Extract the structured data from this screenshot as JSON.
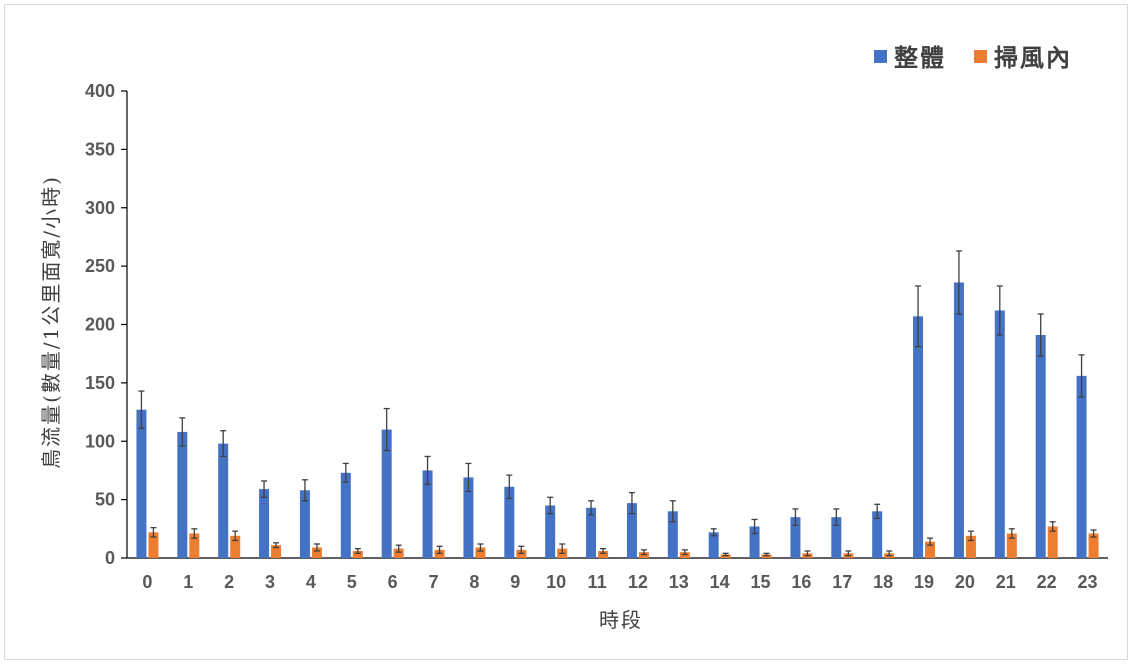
{
  "chart_data": {
    "type": "bar",
    "xlabel": "時段",
    "ylabel": "鳥流量(數量/1公里面寬/小時)",
    "ylim": [
      0,
      400
    ],
    "yticks": [
      "0",
      "50",
      "100",
      "150",
      "200",
      "250",
      "300",
      "350",
      "400"
    ],
    "categories": [
      "0",
      "1",
      "2",
      "3",
      "4",
      "5",
      "6",
      "7",
      "8",
      "9",
      "10",
      "11",
      "12",
      "13",
      "14",
      "15",
      "16",
      "17",
      "18",
      "19",
      "20",
      "21",
      "22",
      "23"
    ],
    "legend_position": "top-right",
    "grid": false,
    "series": [
      {
        "name": "整體",
        "color": "#4472C4",
        "values": [
          127,
          108,
          98,
          59,
          58,
          73,
          110,
          75,
          69,
          61,
          45,
          43,
          47,
          40,
          22,
          27,
          35,
          35,
          40,
          207,
          236,
          212,
          191,
          156
        ],
        "errors": [
          16,
          12,
          11,
          7,
          9,
          8,
          18,
          12,
          12,
          10,
          7,
          6,
          9,
          9,
          3,
          6,
          7,
          7,
          6,
          26,
          27,
          21,
          18,
          18
        ]
      },
      {
        "name": "掃風內",
        "color": "#ED7D31",
        "values": [
          22,
          21,
          19,
          11,
          9,
          6,
          8,
          7,
          9,
          7,
          8,
          6,
          5,
          5,
          3,
          3,
          4,
          4,
          4,
          14,
          19,
          21,
          27,
          21
        ],
        "errors": [
          4,
          4,
          4,
          2,
          3,
          2,
          3,
          3,
          3,
          3,
          4,
          2,
          2,
          2,
          1,
          1,
          2,
          2,
          2,
          3,
          4,
          4,
          4,
          3
        ]
      }
    ]
  }
}
